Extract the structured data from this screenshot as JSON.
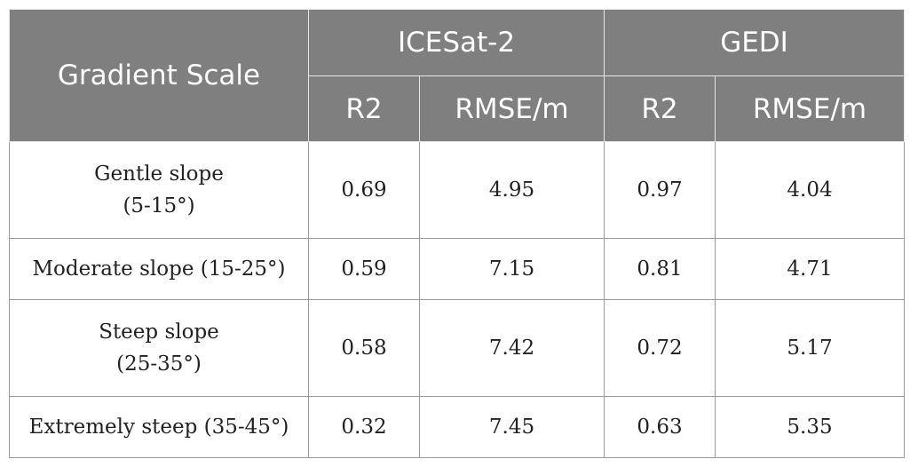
{
  "header": {
    "gradient_scale": "Gradient Scale",
    "icesat2": "ICESat-2",
    "gedi": "GEDI",
    "r2_a": "R2",
    "rmse_a": "RMSE/m",
    "r2_b": "R2",
    "rmse_b": "RMSE/m"
  },
  "rows": [
    {
      "label_line1": "Gentle slope",
      "label_line2": "(5-15°)",
      "icesat_r2": "0.69",
      "icesat_rmse": "4.95",
      "gedi_r2": "0.97",
      "gedi_rmse": "4.04"
    },
    {
      "label_line1": "Moderate slope (15-25°)",
      "icesat_r2": "0.59",
      "icesat_rmse": "7.15",
      "gedi_r2": "0.81",
      "gedi_rmse": "4.71"
    },
    {
      "label_line1": "Steep slope",
      "label_line2": "(25-35°)",
      "icesat_r2": "0.58",
      "icesat_rmse": "7.42",
      "gedi_r2": "0.72",
      "gedi_rmse": "5.17"
    },
    {
      "label_line1": "Extremely steep (35-45°)",
      "icesat_r2": "0.32",
      "icesat_rmse": "7.45",
      "gedi_r2": "0.63",
      "gedi_rmse": "5.35"
    }
  ]
}
